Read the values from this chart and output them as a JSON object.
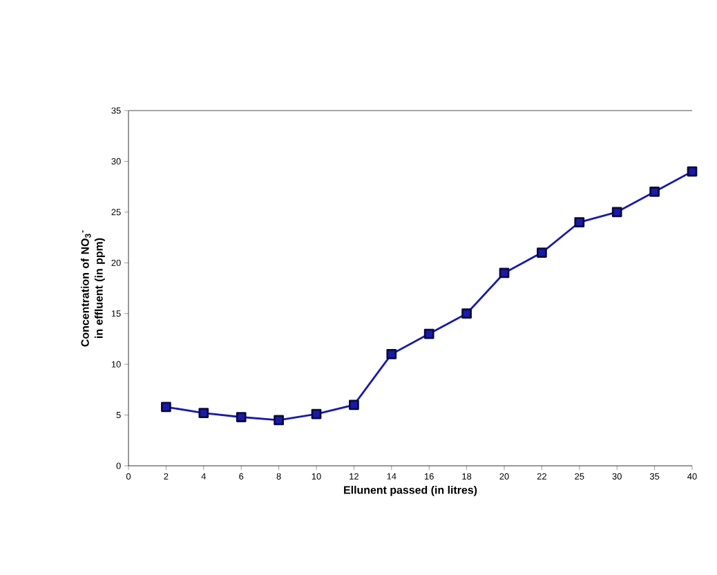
{
  "chart_data": {
    "type": "line",
    "xlabel": "Ellunent passed (in litres)",
    "ylabel": "Concentration of NO$_{3}$$^{-}$ in effluent (in ppm)",
    "categories": [
      "0",
      "2",
      "4",
      "6",
      "8",
      "10",
      "12",
      "14",
      "16",
      "18",
      "20",
      "22",
      "25",
      "30",
      "35",
      "40"
    ],
    "series": [
      {
        "color": "#1a1aa8",
        "values": [
          null,
          5.8,
          5.2,
          4.8,
          4.5,
          5.1,
          6,
          11,
          13,
          15,
          19,
          21,
          24,
          25,
          27,
          29
        ]
      }
    ],
    "ylim": [
      0,
      35
    ],
    "yticks": [
      0,
      5,
      10,
      15,
      20,
      25,
      30,
      35
    ],
    "marker": "square",
    "line_style": "solid"
  }
}
